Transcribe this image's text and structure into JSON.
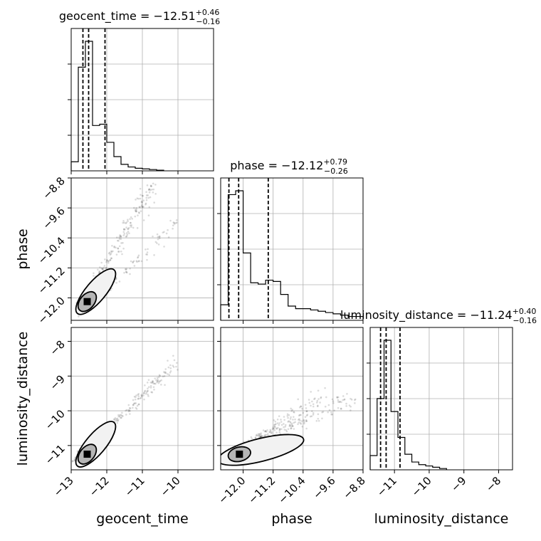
{
  "chart_data": {
    "type": "scatter",
    "variant": "corner-plot",
    "parameters": [
      "geocent_time",
      "phase",
      "luminosity_distance"
    ],
    "titles": [
      {
        "param": "geocent_time",
        "median": "12.51",
        "plus": "+0.46",
        "minus": "0.16"
      },
      {
        "param": "phase",
        "median": "12.12",
        "plus": "+0.79",
        "minus": "0.26"
      },
      {
        "param": "luminosity_distance",
        "median": "11.24",
        "plus": "+0.40",
        "minus": "0.16"
      }
    ],
    "axis_ranges": {
      "geocent_time": [
        -13.0,
        -9.0
      ],
      "phase": [
        -12.6,
        -8.8
      ],
      "luminosity_distance": [
        -11.7,
        -7.6
      ]
    },
    "ticks": {
      "geocent_time": [
        -13,
        -12,
        -11,
        -10
      ],
      "phase": [
        -12.0,
        -11.2,
        -10.4,
        -9.6,
        -8.8
      ],
      "luminosity_distance": [
        -11,
        -10,
        -9,
        -8
      ]
    },
    "tick_labels": {
      "geocent_time": [
        "−13",
        "−12",
        "−11",
        "−10"
      ],
      "phase": [
        "−12.0",
        "−11.2",
        "−10.4",
        "−9.6",
        "−8.8"
      ],
      "luminosity_distance": [
        "−11",
        "−10",
        "−9",
        "−8"
      ]
    },
    "quantiles": {
      "geocent_time": [
        -12.67,
        -12.51,
        -12.05
      ],
      "phase": [
        -12.38,
        -12.12,
        -11.33
      ],
      "luminosity_distance": [
        -11.4,
        -11.24,
        -10.84
      ]
    },
    "histograms": {
      "geocent_time": {
        "edges": [
          -13.0,
          -12.8,
          -12.6,
          -12.4,
          -12.2,
          -12.0,
          -11.8,
          -11.6,
          -11.4,
          -11.2,
          -11.0,
          -10.8,
          -10.6,
          -10.4
        ],
        "counts": [
          0.07,
          0.8,
          1.0,
          0.35,
          0.36,
          0.22,
          0.11,
          0.05,
          0.03,
          0.02,
          0.015,
          0.01,
          0.005
        ]
      },
      "phase": {
        "edges": [
          -12.6,
          -12.4,
          -12.2,
          -12.0,
          -11.8,
          -11.6,
          -11.4,
          -11.2,
          -11.0,
          -10.8,
          -10.6,
          -10.4,
          -10.2,
          -10.0,
          -9.8,
          -9.6,
          -9.4,
          -9.2,
          -9.0,
          -8.8
        ],
        "counts": [
          0.12,
          0.97,
          1.0,
          0.52,
          0.29,
          0.28,
          0.31,
          0.3,
          0.2,
          0.11,
          0.09,
          0.09,
          0.08,
          0.07,
          0.06,
          0.05,
          0.04,
          0.03,
          0.03
        ]
      },
      "luminosity_distance": {
        "edges": [
          -11.7,
          -11.5,
          -11.3,
          -11.1,
          -10.9,
          -10.7,
          -10.5,
          -10.3,
          -10.1,
          -9.9,
          -9.7,
          -9.5
        ],
        "counts": [
          0.11,
          0.55,
          1.0,
          0.45,
          0.25,
          0.12,
          0.06,
          0.04,
          0.03,
          0.02,
          0.01
        ]
      }
    },
    "correlations": [
      {
        "x": "geocent_time",
        "y": "phase",
        "branches": [
          {
            "from": [
              -12.8,
              -12.3
            ],
            "to": [
              -10.6,
              -8.85
            ],
            "n": 240,
            "spread": 0.18
          },
          {
            "from": [
              -12.4,
              -12.1
            ],
            "to": [
              -10.0,
              -10.0
            ],
            "n": 90,
            "spread": 0.12
          }
        ],
        "core": [
          -12.55,
          -12.1
        ]
      },
      {
        "x": "geocent_time",
        "y": "luminosity_distance",
        "branches": [
          {
            "from": [
              -12.9,
              -11.4
            ],
            "to": [
              -10.0,
              -8.6
            ],
            "n": 240,
            "spread": 0.1
          }
        ],
        "core": [
          -12.55,
          -11.25
        ]
      },
      {
        "x": "phase",
        "y": "luminosity_distance",
        "branches": [
          {
            "from": [
              -12.5,
              -11.4
            ],
            "to": [
              -9.8,
              -9.5
            ],
            "n": 140,
            "spread": 0.1
          },
          {
            "from": [
              -12.4,
              -11.2
            ],
            "to": [
              -9.0,
              -9.6
            ],
            "n": 200,
            "spread": 0.11
          }
        ],
        "core": [
          -12.1,
          -11.25
        ]
      }
    ],
    "grid": true
  }
}
